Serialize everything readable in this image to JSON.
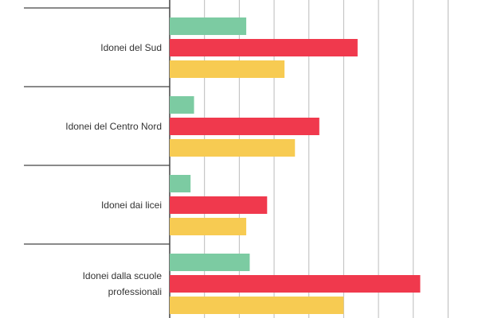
{
  "chart_data": {
    "type": "bar",
    "orientation": "horizontal",
    "categories": [
      "Idonei del Sud",
      "Idonei del Centro Nord",
      "Idonei dai licei",
      "Idonei dalla scuole professionali"
    ],
    "series": [
      {
        "color": "#7ccba2",
        "values": [
          2.2,
          0.7,
          0.6,
          2.3
        ]
      },
      {
        "color": "#f0394d",
        "values": [
          5.4,
          4.3,
          2.8,
          7.2
        ]
      },
      {
        "color": "#f7cb52",
        "values": [
          3.3,
          3.6,
          2.2,
          5.0
        ]
      }
    ],
    "xlim": [
      0,
      8.86
    ],
    "xticks": [
      0,
      1,
      2,
      3,
      4,
      5,
      6,
      7,
      8
    ],
    "grid": true
  }
}
